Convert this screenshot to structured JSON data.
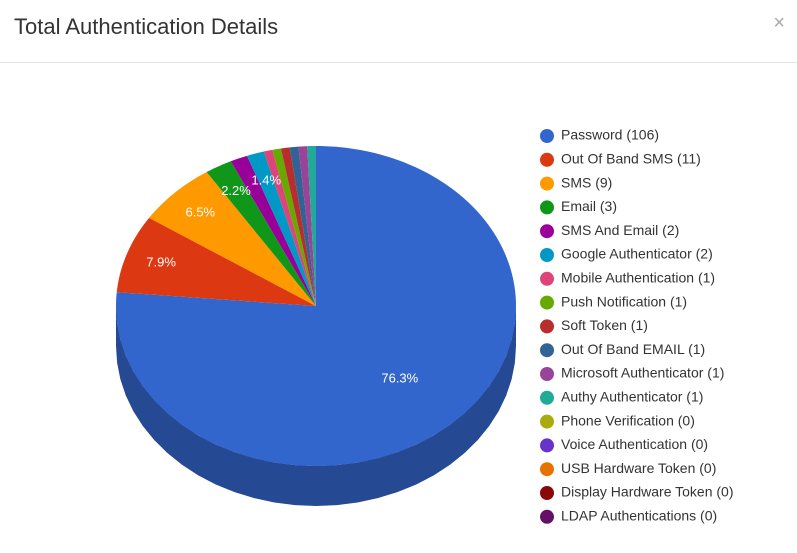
{
  "header": {
    "title": "Total Authentication Details",
    "close": "×"
  },
  "chart_data": {
    "type": "pie",
    "categories": [
      "Password (106)",
      "Out Of Band SMS (11)",
      "SMS (9)",
      "Email (3)",
      "SMS And Email (2)",
      "Google Authenticator (2)",
      "Mobile Authentication (1)",
      "Push Notification (1)",
      "Soft Token (1)",
      "Out Of Band EMAIL (1)",
      "Microsoft Authenticator (1)",
      "Authy Authenticator (1)",
      "Phone Verification (0)",
      "Voice Authentication (0)",
      "USB Hardware Token (0)",
      "Display Hardware Token (0)",
      "LDAP Authentications (0)"
    ],
    "values": [
      76.3,
      7.9,
      6.5,
      2.2,
      1.4,
      1.4,
      0.7,
      0.7,
      0.7,
      0.7,
      0.7,
      0.7,
      0,
      0,
      0,
      0,
      0
    ],
    "value_labels": [
      "76.3%",
      "7.9%",
      "6.5%",
      "2.2%",
      null,
      "1.4%",
      null,
      null,
      null,
      null,
      null,
      null,
      null,
      null,
      null,
      null,
      null
    ],
    "colors": [
      "#3366cc",
      "#dc3912",
      "#ff9900",
      "#109618",
      "#990099",
      "#0099c6",
      "#dd4477",
      "#66aa00",
      "#b82e2e",
      "#316395",
      "#994499",
      "#22aa99",
      "#aaaa11",
      "#6633cc",
      "#e67300",
      "#8b0707",
      "#651067"
    ]
  }
}
